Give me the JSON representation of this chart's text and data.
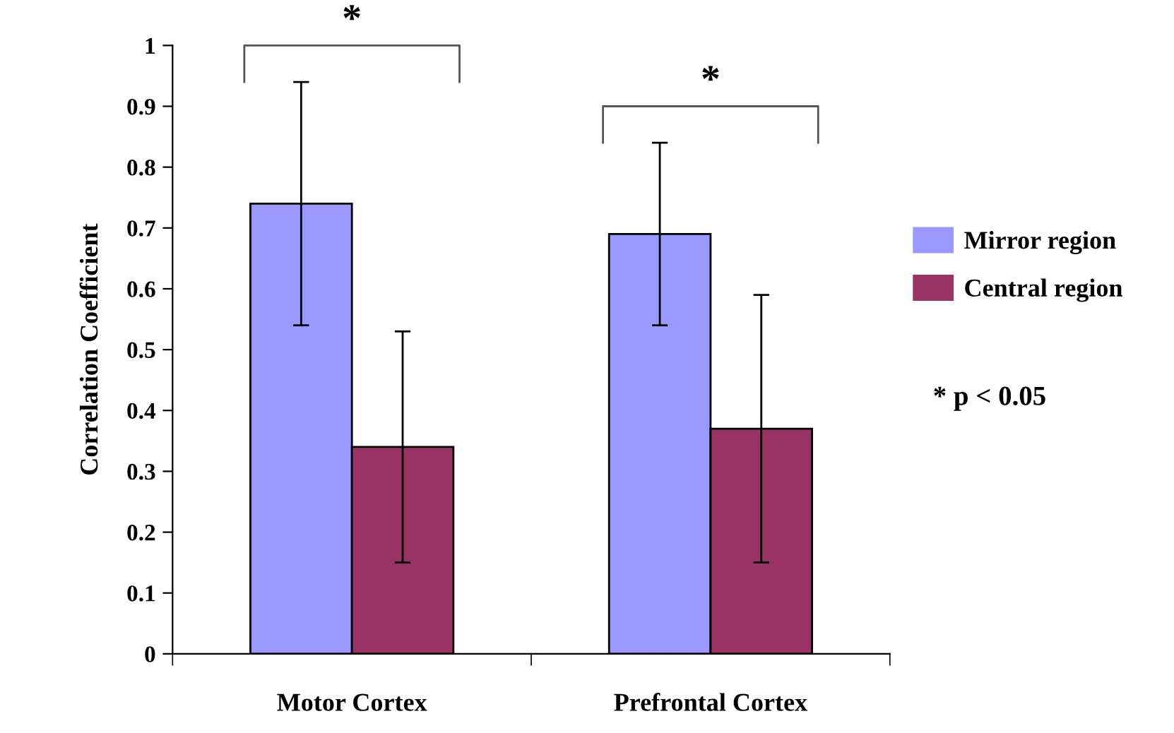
{
  "chart_data": {
    "type": "bar",
    "ylabel": "Correlation Coefficient",
    "categories": [
      "Motor Cortex",
      "Prefrontal Cortex"
    ],
    "series": [
      {
        "name": "Mirror region",
        "color": "#9999ff",
        "values": [
          0.74,
          0.69
        ],
        "errors": [
          0.2,
          0.15
        ]
      },
      {
        "name": "Central region",
        "color": "#993366",
        "values": [
          0.34,
          0.37
        ],
        "errors": [
          0.19,
          0.22
        ]
      }
    ],
    "ylim": [
      0,
      1
    ],
    "yticks": [
      0,
      0.1,
      0.2,
      0.3,
      0.4,
      0.5,
      0.6,
      0.7,
      0.8,
      0.9,
      1
    ],
    "grid": false,
    "legend": "right",
    "annotations": [
      "*",
      "*",
      "* p < 0.05"
    ]
  }
}
